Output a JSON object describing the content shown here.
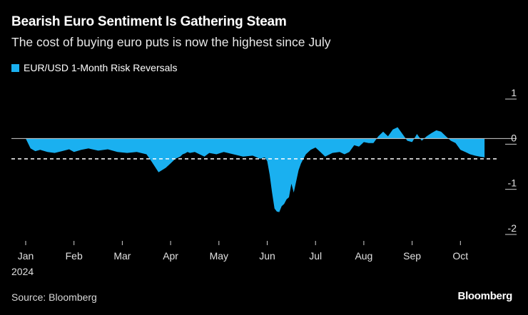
{
  "header": {
    "title": "Bearish Euro Sentiment Is Gathering Steam",
    "subtitle": "The cost of buying euro puts is now the highest since July"
  },
  "legend": {
    "label": "EUR/USD 1-Month Risk Reversals"
  },
  "footer": {
    "source": "Source: Bloomberg",
    "brand": "Bloomberg"
  },
  "chart_data": {
    "type": "area",
    "title": "Bearish Euro Sentiment Is Gathering Steam",
    "subtitle": "The cost of buying euro puts is now the highest since July",
    "series": [
      {
        "name": "EUR/USD 1-Month Risk Reversals",
        "color": "#1ab0f0",
        "x": [
          0.0,
          0.1,
          0.2,
          0.3,
          0.45,
          0.6,
          0.75,
          0.9,
          1.0,
          1.15,
          1.3,
          1.5,
          1.7,
          1.9,
          2.1,
          2.3,
          2.5,
          2.6,
          2.75,
          2.9,
          3.0,
          3.1,
          3.2,
          3.25,
          3.3,
          3.35,
          3.4,
          3.5,
          3.6,
          3.7,
          3.8,
          3.95,
          4.1,
          4.3,
          4.5,
          4.7,
          4.85,
          4.95,
          5.0,
          5.05,
          5.1,
          5.15,
          5.2,
          5.25,
          5.3,
          5.35,
          5.4,
          5.45,
          5.5,
          5.55,
          5.6,
          5.65,
          5.7,
          5.75,
          5.8,
          5.9,
          6.0,
          6.1,
          6.2,
          6.35,
          6.5,
          6.6,
          6.7,
          6.8,
          6.9,
          7.0,
          7.1,
          7.2,
          7.3,
          7.4,
          7.5,
          7.6,
          7.7,
          7.8,
          7.9,
          8.0,
          8.1,
          8.2,
          8.3,
          8.4,
          8.5,
          8.6,
          8.7,
          8.8,
          8.9,
          9.0,
          9.1,
          9.2,
          9.3,
          9.4,
          9.5
        ],
        "values": [
          0.0,
          -0.22,
          -0.28,
          -0.25,
          -0.3,
          -0.32,
          -0.28,
          -0.24,
          -0.3,
          -0.25,
          -0.22,
          -0.27,
          -0.24,
          -0.3,
          -0.32,
          -0.3,
          -0.35,
          -0.5,
          -0.75,
          -0.65,
          -0.55,
          -0.45,
          -0.4,
          -0.35,
          -0.33,
          -0.3,
          -0.32,
          -0.3,
          -0.35,
          -0.4,
          -0.32,
          -0.35,
          -0.3,
          -0.35,
          -0.4,
          -0.38,
          -0.45,
          -0.42,
          -0.5,
          -0.8,
          -1.2,
          -1.55,
          -1.62,
          -1.63,
          -1.5,
          -1.45,
          -1.35,
          -1.3,
          -1.0,
          -1.2,
          -0.95,
          -0.7,
          -0.55,
          -0.45,
          -0.35,
          -0.25,
          -0.2,
          -0.3,
          -0.4,
          -0.32,
          -0.3,
          -0.35,
          -0.3,
          -0.15,
          -0.18,
          -0.08,
          -0.1,
          -0.1,
          0.05,
          0.15,
          0.05,
          0.2,
          0.25,
          0.1,
          -0.05,
          -0.08,
          0.1,
          -0.05,
          0.05,
          0.12,
          0.18,
          0.15,
          0.05,
          -0.05,
          -0.1,
          -0.25,
          -0.3,
          -0.35,
          -0.38,
          -0.4,
          -0.42
        ]
      }
    ],
    "reference_line": {
      "value": -0.45,
      "style": "dashed"
    },
    "x_ticks": [
      {
        "pos": 0,
        "label": "Jan"
      },
      {
        "pos": 1,
        "label": "Feb"
      },
      {
        "pos": 2,
        "label": "Mar"
      },
      {
        "pos": 3,
        "label": "Apr"
      },
      {
        "pos": 4,
        "label": "May"
      },
      {
        "pos": 5,
        "label": "Jun"
      },
      {
        "pos": 6,
        "label": "Jul"
      },
      {
        "pos": 7,
        "label": "Aug"
      },
      {
        "pos": 8,
        "label": "Sep"
      },
      {
        "pos": 9,
        "label": "Oct"
      }
    ],
    "x_year_label": "2024",
    "xlim": [
      0,
      10
    ],
    "y_ticks": [
      1,
      0,
      -1,
      -2
    ],
    "ylim": [
      -2,
      1
    ],
    "xlabel": "",
    "ylabel": ""
  }
}
